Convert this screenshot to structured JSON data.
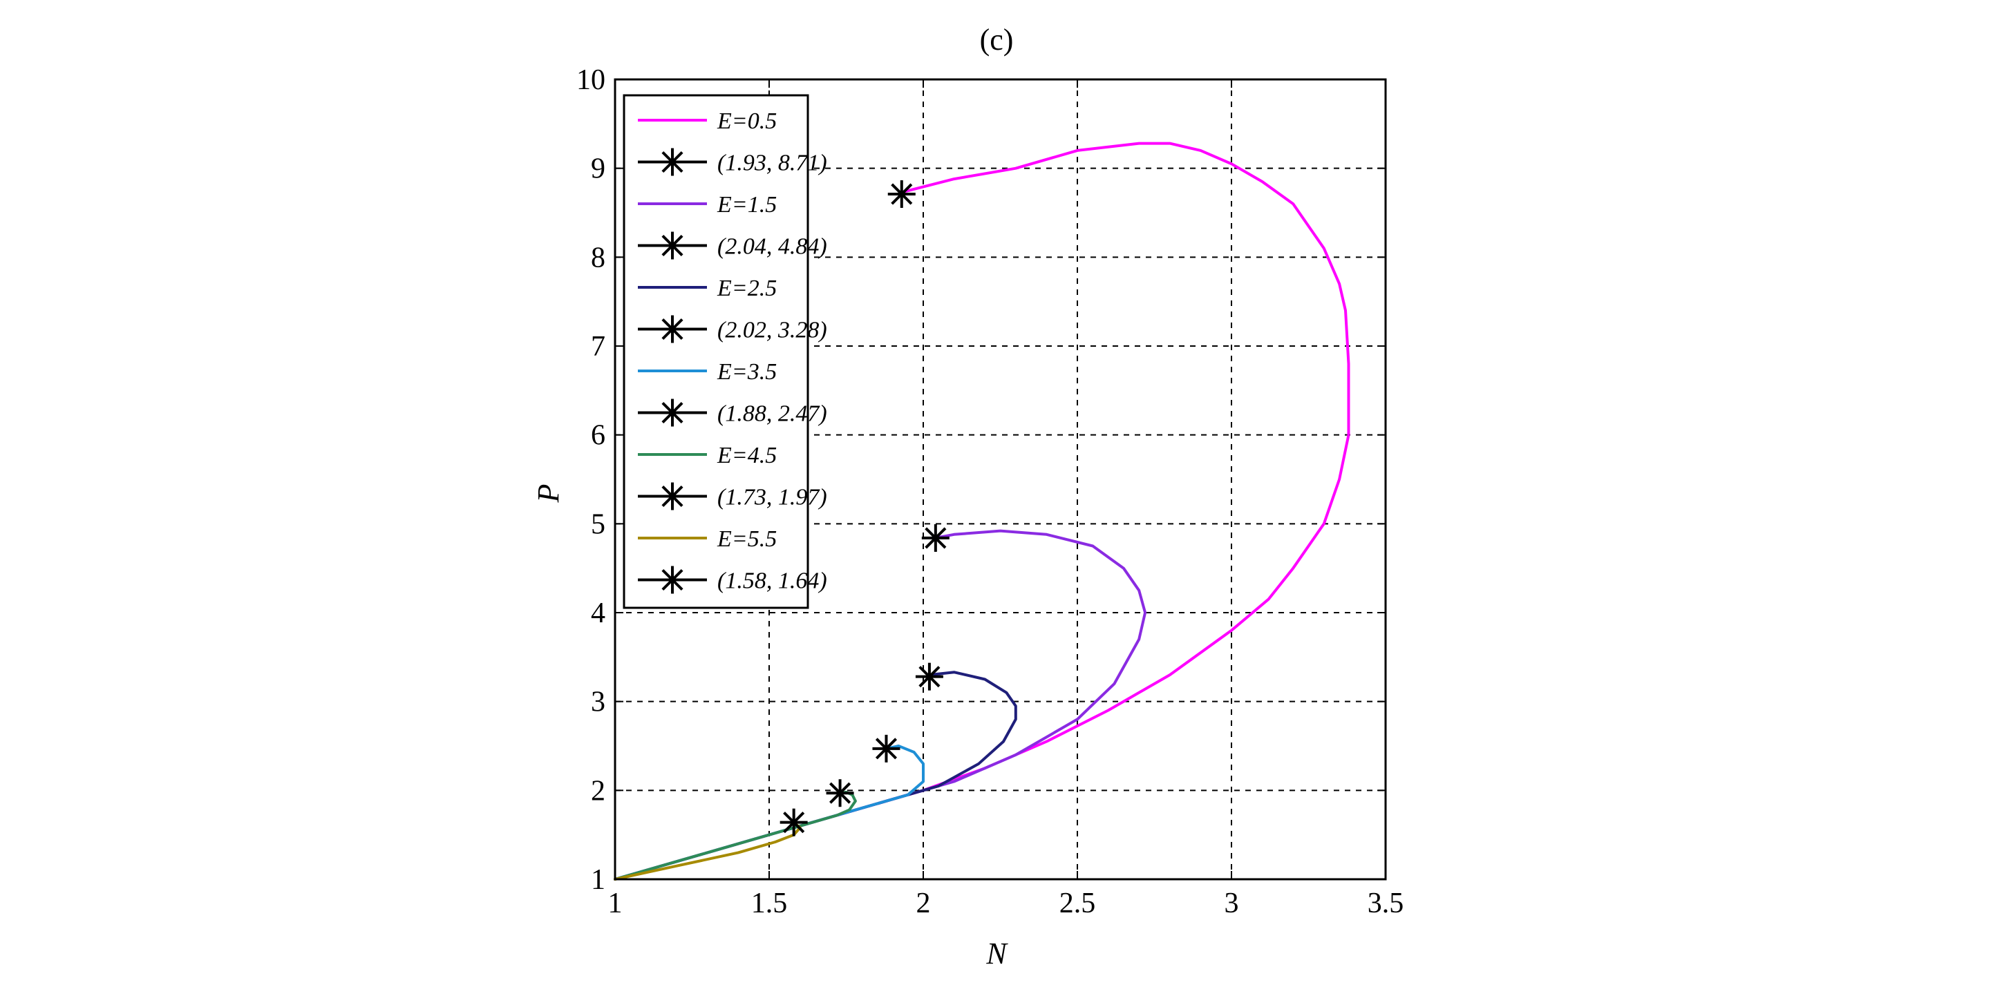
{
  "chart_data": {
    "type": "line",
    "title": "(c)",
    "xlabel": "N",
    "ylabel": "P",
    "xlim": [
      1,
      3.5
    ],
    "ylim": [
      1,
      10
    ],
    "xticks": [
      "1",
      "1.5",
      "2",
      "2.5",
      "3",
      "3.5"
    ],
    "yticks": [
      "1",
      "2",
      "3",
      "4",
      "5",
      "6",
      "7",
      "8",
      "9",
      "10"
    ],
    "grid": true,
    "legend_position": "upper-left",
    "series": [
      {
        "name": "E=0.5",
        "color": "#ff00ff",
        "x": [
          1.0,
          1.2,
          1.5,
          1.8,
          2.0,
          2.2,
          2.4,
          2.6,
          2.8,
          3.0,
          3.12,
          3.2,
          3.3,
          3.35,
          3.38,
          3.38,
          3.37,
          3.35,
          3.3,
          3.2,
          3.1,
          3.0,
          2.9,
          2.8,
          2.7,
          2.5,
          2.3,
          2.1,
          1.93
        ],
        "y": [
          1.0,
          1.2,
          1.5,
          1.8,
          2.0,
          2.25,
          2.55,
          2.9,
          3.3,
          3.8,
          4.15,
          4.5,
          5.0,
          5.5,
          6.0,
          6.8,
          7.4,
          7.7,
          8.1,
          8.6,
          8.85,
          9.05,
          9.2,
          9.28,
          9.28,
          9.2,
          9.0,
          8.88,
          8.73
        ]
      },
      {
        "name": "(1.93, 8.71)",
        "color": "#000000",
        "marker": "star",
        "x": [
          1.93
        ],
        "y": [
          8.71
        ]
      },
      {
        "name": "E=1.5",
        "color": "#8a2be2",
        "x": [
          1.0,
          1.3,
          1.6,
          1.9,
          2.1,
          2.3,
          2.5,
          2.62,
          2.7,
          2.72,
          2.7,
          2.65,
          2.55,
          2.4,
          2.25,
          2.1,
          2.04
        ],
        "y": [
          1.0,
          1.3,
          1.6,
          1.9,
          2.1,
          2.4,
          2.8,
          3.2,
          3.7,
          4.0,
          4.25,
          4.5,
          4.75,
          4.88,
          4.92,
          4.88,
          4.84
        ]
      },
      {
        "name": "(2.04, 4.84)",
        "color": "#000000",
        "marker": "star",
        "x": [
          2.04
        ],
        "y": [
          4.84
        ]
      },
      {
        "name": "E=2.5",
        "color": "#1f1f7a",
        "x": [
          1.0,
          1.3,
          1.6,
          1.9,
          2.05,
          2.18,
          2.26,
          2.3,
          2.3,
          2.27,
          2.2,
          2.1,
          2.02
        ],
        "y": [
          1.0,
          1.3,
          1.6,
          1.9,
          2.05,
          2.3,
          2.55,
          2.8,
          2.95,
          3.1,
          3.25,
          3.33,
          3.3
        ]
      },
      {
        "name": "(2.02, 3.28)",
        "color": "#000000",
        "marker": "star",
        "x": [
          2.02
        ],
        "y": [
          3.28
        ]
      },
      {
        "name": "E=3.5",
        "color": "#1e8fd6",
        "x": [
          1.0,
          1.3,
          1.6,
          1.85,
          1.95,
          2.0,
          2.0,
          1.97,
          1.92,
          1.88
        ],
        "y": [
          1.0,
          1.3,
          1.6,
          1.85,
          1.95,
          2.1,
          2.3,
          2.43,
          2.5,
          2.47
        ]
      },
      {
        "name": "(1.88, 2.47)",
        "color": "#000000",
        "marker": "star",
        "x": [
          1.88
        ],
        "y": [
          2.47
        ]
      },
      {
        "name": "E=4.5",
        "color": "#2e8b57",
        "x": [
          1.0,
          1.3,
          1.5,
          1.65,
          1.72,
          1.76,
          1.78,
          1.77,
          1.75,
          1.73
        ],
        "y": [
          1.0,
          1.3,
          1.5,
          1.65,
          1.72,
          1.78,
          1.88,
          1.95,
          1.98,
          1.97
        ]
      },
      {
        "name": "(1.73, 1.97)",
        "color": "#000000",
        "marker": "star",
        "x": [
          1.73
        ],
        "y": [
          1.97
        ]
      },
      {
        "name": "E=5.5",
        "color": "#a68a00",
        "x": [
          1.0,
          1.2,
          1.4,
          1.52,
          1.58,
          1.6,
          1.58
        ],
        "y": [
          1.0,
          1.15,
          1.3,
          1.42,
          1.5,
          1.58,
          1.64
        ]
      },
      {
        "name": "(1.58, 1.64)",
        "color": "#000000",
        "marker": "star",
        "x": [
          1.58
        ],
        "y": [
          1.64
        ]
      }
    ],
    "legend": [
      {
        "label": "E=0.5",
        "color": "#ff00ff",
        "marker": "line"
      },
      {
        "label": "(1.93, 8.71)",
        "color": "#000000",
        "marker": "star"
      },
      {
        "label": "E=1.5",
        "color": "#8a2be2",
        "marker": "line"
      },
      {
        "label": "(2.04, 4.84)",
        "color": "#000000",
        "marker": "star"
      },
      {
        "label": "E=2.5",
        "color": "#1f1f7a",
        "marker": "line"
      },
      {
        "label": "(2.02, 3.28)",
        "color": "#000000",
        "marker": "star"
      },
      {
        "label": "E=3.5",
        "color": "#1e8fd6",
        "marker": "line"
      },
      {
        "label": "(1.88, 2.47)",
        "color": "#000000",
        "marker": "star"
      },
      {
        "label": "E=4.5",
        "color": "#2e8b57",
        "marker": "line"
      },
      {
        "label": "(1.73, 1.97)",
        "color": "#000000",
        "marker": "star"
      },
      {
        "label": "E=5.5",
        "color": "#a68a00",
        "marker": "line"
      },
      {
        "label": "(1.58, 1.64)",
        "color": "#000000",
        "marker": "star"
      }
    ]
  }
}
